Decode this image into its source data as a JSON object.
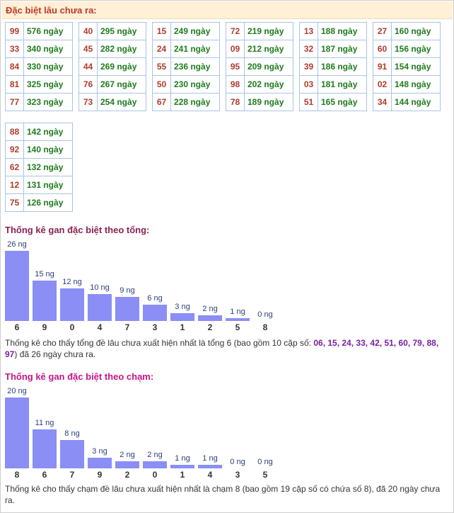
{
  "header": {
    "title": "Đặc biệt lâu chưa ra:"
  },
  "tables": [
    {
      "rows": [
        {
          "num": "99",
          "days": "576 ngày"
        },
        {
          "num": "33",
          "days": "340 ngày"
        },
        {
          "num": "84",
          "days": "330 ngày"
        },
        {
          "num": "81",
          "days": "325 ngày"
        },
        {
          "num": "77",
          "days": "323 ngày"
        }
      ]
    },
    {
      "rows": [
        {
          "num": "40",
          "days": "295 ngày"
        },
        {
          "num": "45",
          "days": "282 ngày"
        },
        {
          "num": "44",
          "days": "269 ngày"
        },
        {
          "num": "76",
          "days": "267 ngày"
        },
        {
          "num": "73",
          "days": "254 ngày"
        }
      ]
    },
    {
      "rows": [
        {
          "num": "15",
          "days": "249 ngày"
        },
        {
          "num": "24",
          "days": "241 ngày"
        },
        {
          "num": "55",
          "days": "236 ngày"
        },
        {
          "num": "50",
          "days": "230 ngày"
        },
        {
          "num": "67",
          "days": "228 ngày"
        }
      ]
    },
    {
      "rows": [
        {
          "num": "72",
          "days": "219 ngày"
        },
        {
          "num": "09",
          "days": "212 ngày"
        },
        {
          "num": "95",
          "days": "209 ngày"
        },
        {
          "num": "98",
          "days": "202 ngày"
        },
        {
          "num": "78",
          "days": "189 ngày"
        }
      ]
    },
    {
      "rows": [
        {
          "num": "13",
          "days": "188 ngày"
        },
        {
          "num": "32",
          "days": "187 ngày"
        },
        {
          "num": "39",
          "days": "186 ngày"
        },
        {
          "num": "03",
          "days": "181 ngày"
        },
        {
          "num": "51",
          "days": "165 ngày"
        }
      ]
    },
    {
      "rows": [
        {
          "num": "27",
          "days": "160 ngày"
        },
        {
          "num": "60",
          "days": "156 ngày"
        },
        {
          "num": "91",
          "days": "154 ngày"
        },
        {
          "num": "02",
          "days": "148 ngày"
        },
        {
          "num": "34",
          "days": "144 ngày"
        }
      ]
    },
    {
      "rows": [
        {
          "num": "88",
          "days": "142 ngày"
        },
        {
          "num": "92",
          "days": "140 ngày"
        },
        {
          "num": "62",
          "days": "132 ngày"
        },
        {
          "num": "12",
          "days": "131 ngày"
        },
        {
          "num": "75",
          "days": "126 ngày"
        }
      ]
    }
  ],
  "tong": {
    "title": "Thống kê gan đặc biệt theo tổng:",
    "note_prefix": "Thống kê cho thấy tổng đề lâu chưa xuất hiện nhất là tổng 6 (bao gồm 10 cặp số: ",
    "note_highlight": "06, 15, 24, 33, 42, 51, 60, 79, 88, 97",
    "note_suffix": ") đã 26 ngày chưa ra."
  },
  "cham": {
    "title": "Thống kê gan đặc biệt theo chạm:",
    "note": "Thống kê cho thấy chạm đề lâu chưa xuất hiện nhất là chạm 8 (bao gồm 19 cặp số có chứa số 8), đã 20 ngày chưa ra."
  },
  "chart_data": [
    {
      "type": "bar",
      "categories": [
        "6",
        "9",
        "0",
        "4",
        "7",
        "3",
        "1",
        "2",
        "5",
        "8"
      ],
      "values": [
        26,
        15,
        12,
        10,
        9,
        6,
        3,
        2,
        1,
        0
      ],
      "labels": [
        "26 ng",
        "15 ng",
        "12 ng",
        "10 ng",
        "9 ng",
        "6 ng",
        "3 ng",
        "2 ng",
        "1 ng",
        "0 ng"
      ],
      "title": "Thống kê gan đặc biệt theo tổng:",
      "color": "#8a8ef5"
    },
    {
      "type": "bar",
      "categories": [
        "8",
        "6",
        "7",
        "9",
        "2",
        "0",
        "1",
        "4",
        "3",
        "5"
      ],
      "values": [
        20,
        11,
        8,
        3,
        2,
        2,
        1,
        1,
        0,
        0
      ],
      "labels": [
        "20 ng",
        "11 ng",
        "8 ng",
        "3 ng",
        "2 ng",
        "2 ng",
        "1 ng",
        "1 ng",
        "0 ng",
        "0 ng"
      ],
      "title": "Thống kê gan đặc biệt theo chạm:",
      "color": "#8a8ef5"
    }
  ]
}
